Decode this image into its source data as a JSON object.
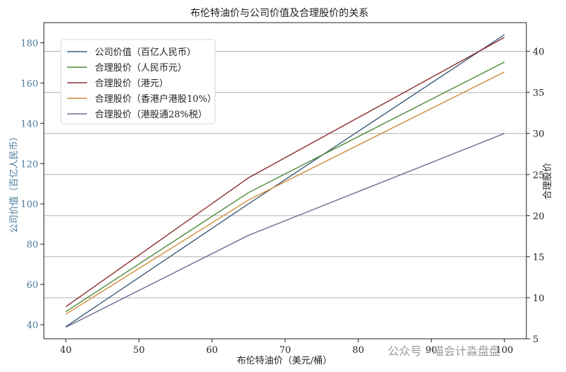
{
  "chart_data": {
    "type": "line",
    "title": "布伦特油价与公司价值及合理股价的关系",
    "xlabel": "布伦特油价（美元/桶）",
    "ylabel_left": "公司价值（百亿人民币）",
    "ylabel_right": "合理股价",
    "x": [
      40,
      65,
      100
    ],
    "xlim": [
      37,
      103
    ],
    "xticks": [
      40,
      50,
      60,
      70,
      80,
      90,
      100
    ],
    "ylim_left": [
      33,
      190
    ],
    "yticks_left": [
      40,
      60,
      80,
      100,
      120,
      140,
      160,
      180
    ],
    "ylim_right": [
      5,
      43.5
    ],
    "yticks_right": [
      5,
      10,
      15,
      20,
      25,
      30,
      35,
      40
    ],
    "grid": "horizontal",
    "legend_position": "upper-left",
    "series": [
      {
        "name": "公司价值（百亿人民币）",
        "axis": "left",
        "color": "#3b5b78",
        "values": [
          39,
          100,
          184
        ]
      },
      {
        "name": "合理股价（人民币元）",
        "axis": "right",
        "color": "#4c8a3a",
        "values": [
          8.3,
          22.8,
          38.7
        ]
      },
      {
        "name": "合理股价（港元）",
        "axis": "right",
        "color": "#8b2e2e",
        "values": [
          8.9,
          24.6,
          41.7
        ]
      },
      {
        "name": "合理股价（香港户港股10%）",
        "axis": "right",
        "color": "#d18a3a",
        "values": [
          8.0,
          21.9,
          37.5
        ]
      },
      {
        "name": "合理股价（港股通28%税）",
        "axis": "right",
        "color": "#6f6d8f",
        "values": [
          6.4,
          17.6,
          30.0
        ]
      }
    ]
  },
  "watermark": "公众号 · 喵会计淼盘盘"
}
